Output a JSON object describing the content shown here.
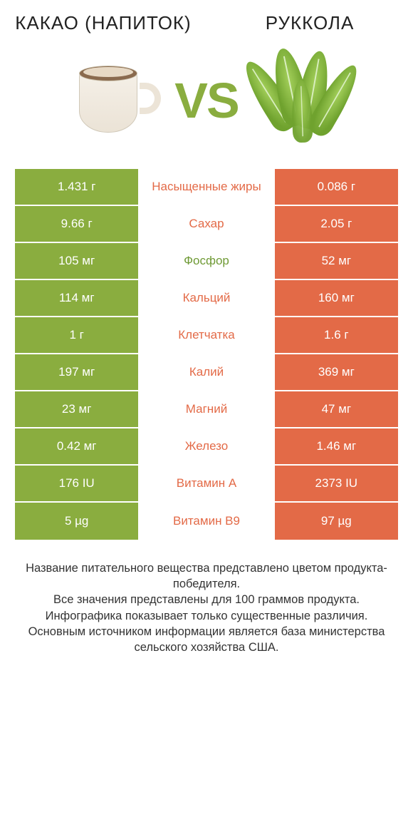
{
  "colors": {
    "green": "#8aad3f",
    "orange": "#e36a47",
    "mid_orange": "#e36a47",
    "mid_green": "#8aad3f",
    "mid_link": "#6f9a35",
    "white": "#ffffff"
  },
  "header": {
    "left_title": "КАКАО (НАПИТОК)",
    "right_title": "РУККОЛА",
    "vs": "VS"
  },
  "rows": [
    {
      "label": "Насыщенные жиры",
      "left": "1.431 г",
      "right": "0.086 г",
      "winner": "right",
      "link": false
    },
    {
      "label": "Сахар",
      "left": "9.66 г",
      "right": "2.05 г",
      "winner": "right",
      "link": false
    },
    {
      "label": "Фосфор",
      "left": "105 мг",
      "right": "52 мг",
      "winner": "left",
      "link": true
    },
    {
      "label": "Кальций",
      "left": "114 мг",
      "right": "160 мг",
      "winner": "right",
      "link": false
    },
    {
      "label": "Клетчатка",
      "left": "1 г",
      "right": "1.6 г",
      "winner": "right",
      "link": false
    },
    {
      "label": "Калий",
      "left": "197 мг",
      "right": "369 мг",
      "winner": "right",
      "link": false
    },
    {
      "label": "Магний",
      "left": "23 мг",
      "right": "47 мг",
      "winner": "right",
      "link": false
    },
    {
      "label": "Железо",
      "left": "0.42 мг",
      "right": "1.46 мг",
      "winner": "right",
      "link": false
    },
    {
      "label": "Витамин A",
      "left": "176 IU",
      "right": "2373 IU",
      "winner": "right",
      "link": false
    },
    {
      "label": "Витамин B9",
      "left": "5 µg",
      "right": "97 µg",
      "winner": "right",
      "link": false
    }
  ],
  "footer": {
    "line1": "Название питательного вещества представлено цветом продукта-победителя.",
    "line2": "Все значения представлены для 100 граммов продукта.",
    "line3": "Инфографика показывает только существенные различия.",
    "line4": "Основным источником информации является база министерства сельского хозяйства США."
  }
}
